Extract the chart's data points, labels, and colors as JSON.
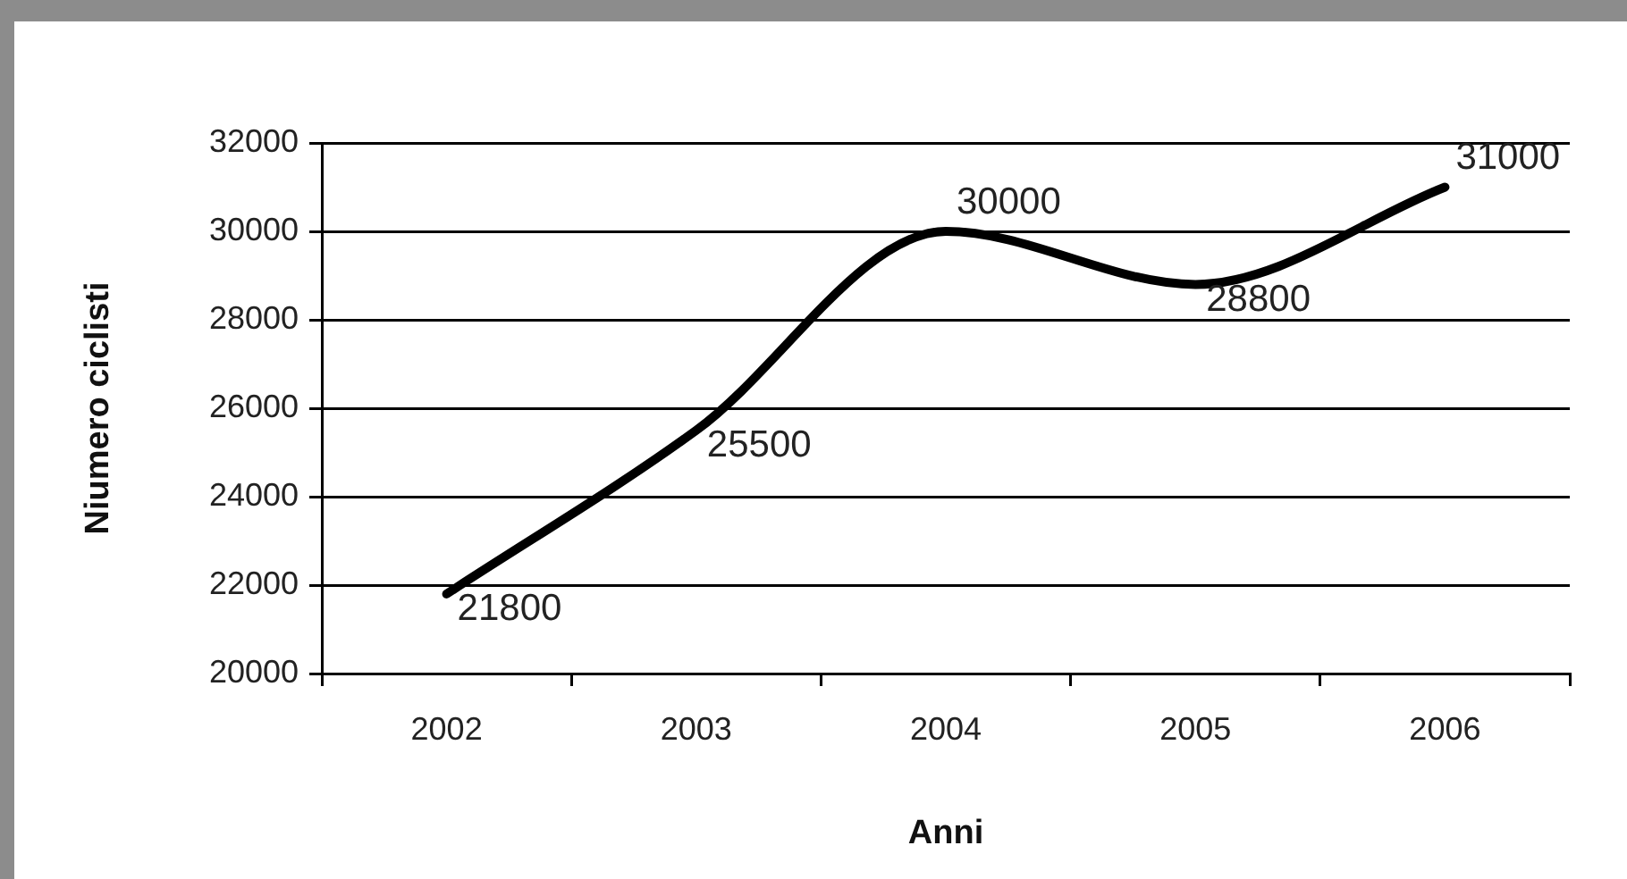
{
  "chart_data": {
    "type": "line",
    "xlabel": "Anni",
    "ylabel": "Niumero ciclisti",
    "categories": [
      "2002",
      "2003",
      "2004",
      "2005",
      "2006"
    ],
    "series": [
      {
        "color": "#000000",
        "values": [
          21800,
          25500,
          30000,
          28800,
          31000
        ]
      }
    ],
    "ylim": [
      20000,
      32000
    ],
    "yticks": [
      20000,
      22000,
      24000,
      26000,
      28000,
      30000,
      32000
    ],
    "grid": "y",
    "legend": false,
    "marker": "none",
    "line_style": "solid",
    "data_labels": true
  }
}
